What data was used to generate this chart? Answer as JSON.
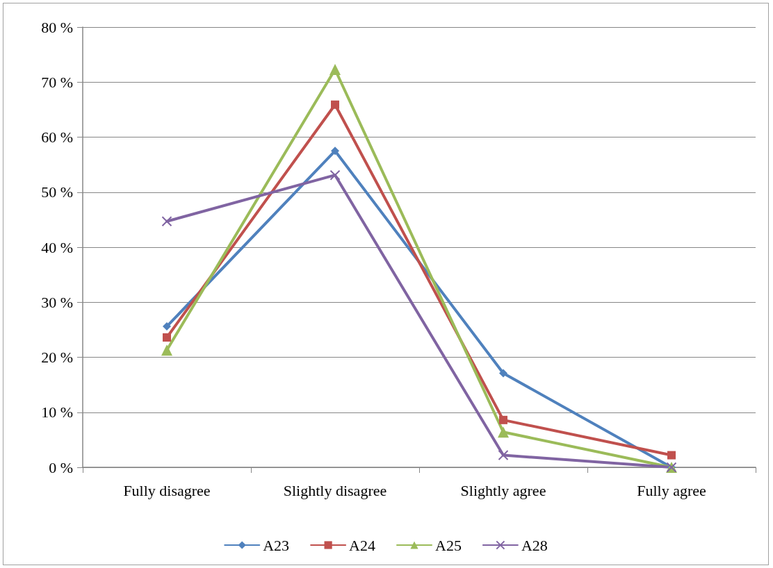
{
  "chart_data": {
    "type": "line",
    "categories": [
      "Fully disagree",
      "Slightly disagree",
      "Slightly agree",
      "Fully agree"
    ],
    "series": [
      {
        "name": "A23",
        "color": "#4f81bd",
        "marker": "diamond",
        "values": [
          25.6,
          57.5,
          17.1,
          0
        ]
      },
      {
        "name": "A24",
        "color": "#c0504d",
        "marker": "square",
        "values": [
          23.6,
          65.9,
          8.6,
          2.2
        ]
      },
      {
        "name": "A25",
        "color": "#9bbb59",
        "marker": "triangle",
        "values": [
          21.3,
          72.3,
          6.4,
          0
        ]
      },
      {
        "name": "A28",
        "color": "#8064a2",
        "marker": "cross",
        "values": [
          44.7,
          53.1,
          2.2,
          0
        ]
      }
    ],
    "ylim": [
      0,
      80
    ],
    "yticks": [
      {
        "value": 0,
        "label": "0 %"
      },
      {
        "value": 10,
        "label": "10 %"
      },
      {
        "value": 20,
        "label": "20 %"
      },
      {
        "value": 30,
        "label": "30 %"
      },
      {
        "value": 40,
        "label": "40 %"
      },
      {
        "value": 50,
        "label": "50 %"
      },
      {
        "value": 60,
        "label": "60 %"
      },
      {
        "value": 70,
        "label": "70 %"
      },
      {
        "value": 80,
        "label": "80 %"
      }
    ],
    "grid": "y",
    "legend": "bottom",
    "line_style": "solid"
  }
}
